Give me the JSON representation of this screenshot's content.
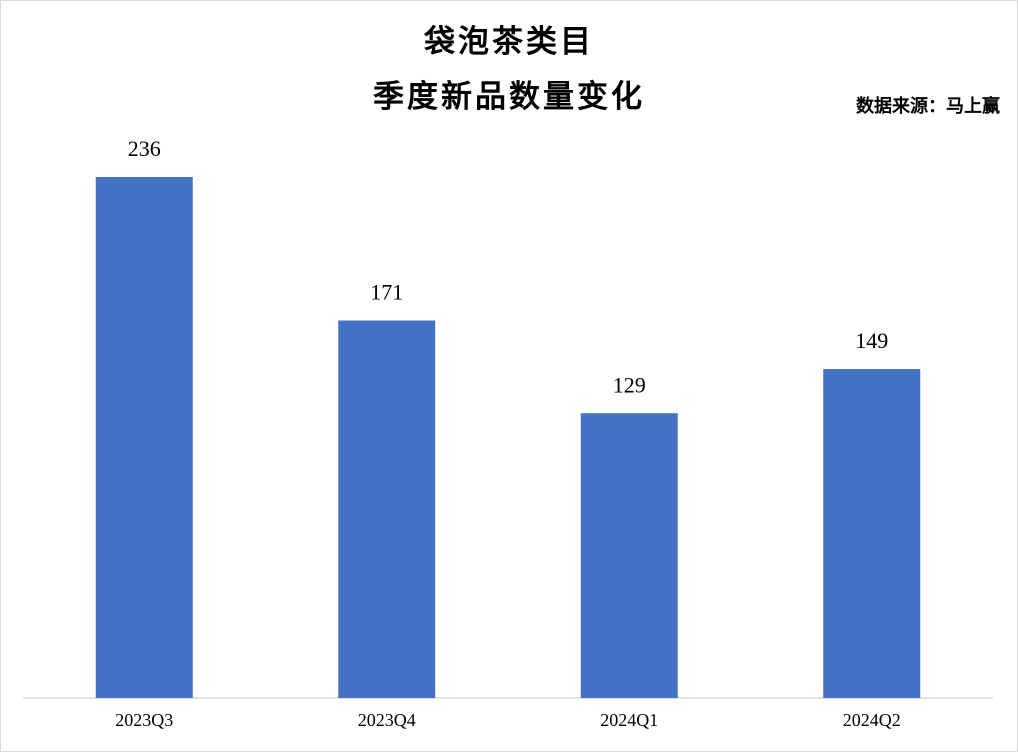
{
  "chart_data": {
    "type": "bar",
    "title": "袋泡茶类目",
    "subtitle": "季度新品数量变化",
    "source": "数据来源：马上赢",
    "categories": [
      "2023Q3",
      "2023Q4",
      "2024Q1",
      "2024Q2"
    ],
    "values": [
      236,
      171,
      129,
      149
    ],
    "color": "#4472c4"
  }
}
